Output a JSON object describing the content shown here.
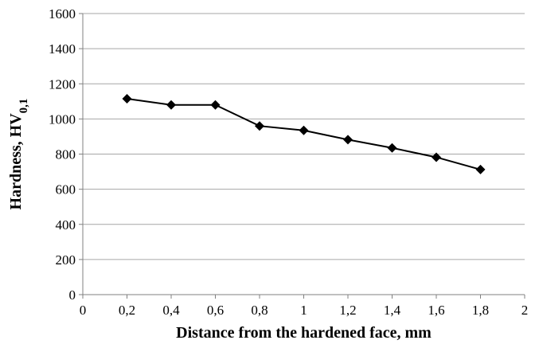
{
  "chart_data": {
    "type": "line",
    "xlabel": "Distance from the hardened face, mm",
    "ylabel": "Hardness, HV",
    "ylabel_subscript": "0,1",
    "xlim": [
      0,
      2
    ],
    "ylim": [
      0,
      1600
    ],
    "xticks": [
      0,
      0.2,
      0.4,
      0.6,
      0.8,
      1,
      1.2,
      1.4,
      1.6,
      1.8,
      2
    ],
    "xtick_labels": [
      "0",
      "0,2",
      "0,4",
      "0,6",
      "0,8",
      "1",
      "1,2",
      "1,4",
      "1,6",
      "1,8",
      "2"
    ],
    "yticks": [
      0,
      200,
      400,
      600,
      800,
      1000,
      1200,
      1400,
      1600
    ],
    "ytick_labels": [
      "0",
      "200",
      "400",
      "600",
      "800",
      "1000",
      "1200",
      "1400",
      "1600"
    ],
    "grid": "horizontal",
    "marker": "diamond",
    "series": [
      {
        "x": [
          0.2,
          0.4,
          0.6,
          0.8,
          1.0,
          1.2,
          1.4,
          1.6,
          1.8
        ],
        "y": [
          1115,
          1080,
          1080,
          960,
          935,
          882,
          835,
          782,
          712
        ],
        "color": "#000000"
      }
    ]
  }
}
